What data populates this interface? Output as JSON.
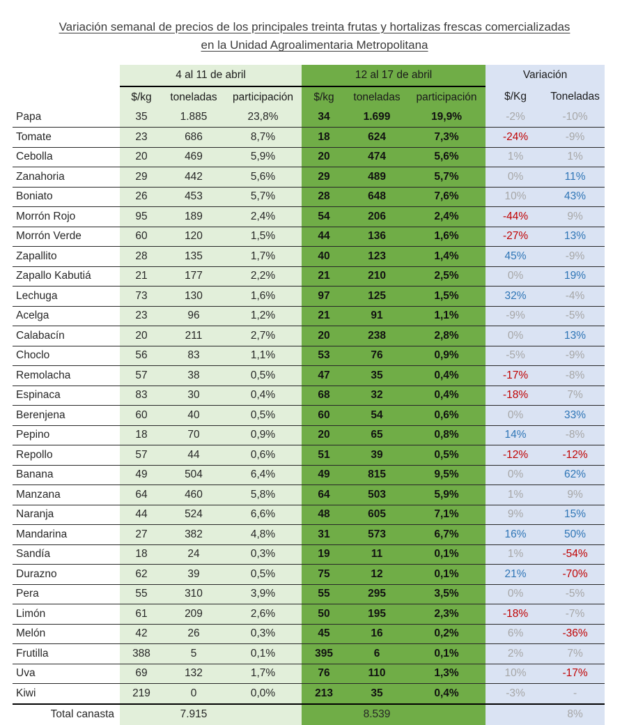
{
  "title": {
    "line1": "Variación semanal de precios de los principales treinta frutas y hortalizas frescas comercializadas",
    "line2": "en la Unidad Agroalimentaria Metropolitana"
  },
  "table": {
    "groups": {
      "week1": "4 al 11 de abril",
      "week2": "12 al 17 de abril",
      "variation": "Variación"
    },
    "subheaders": {
      "week1": [
        "$/kg",
        "toneladas",
        "participación"
      ],
      "week2": [
        "$/kg",
        "toneladas",
        "participación"
      ],
      "variation": [
        "$/Kg",
        "Toneladas"
      ]
    },
    "colors": {
      "week1_bg": "#e2efda",
      "week2_bg": "#70ad47",
      "variation_bg": "#dae3f3",
      "negative_text": "#c00000",
      "positive_text": "#2e75b6",
      "neutral_text": "#a6a6a6"
    },
    "rows": [
      {
        "name": "Papa",
        "w1": [
          "35",
          "1.885",
          "23,8%"
        ],
        "w2": [
          "34",
          "1.699",
          "19,9%"
        ],
        "var": [
          {
            "v": "-2%",
            "c": "gray"
          },
          {
            "v": "-10%",
            "c": "gray"
          }
        ]
      },
      {
        "name": "Tomate",
        "w1": [
          "23",
          "686",
          "8,7%"
        ],
        "w2": [
          "18",
          "624",
          "7,3%"
        ],
        "var": [
          {
            "v": "-24%",
            "c": "red"
          },
          {
            "v": "-9%",
            "c": "gray"
          }
        ]
      },
      {
        "name": "Cebolla",
        "w1": [
          "20",
          "469",
          "5,9%"
        ],
        "w2": [
          "20",
          "474",
          "5,6%"
        ],
        "var": [
          {
            "v": "1%",
            "c": "gray"
          },
          {
            "v": "1%",
            "c": "gray"
          }
        ]
      },
      {
        "name": "Zanahoria",
        "w1": [
          "29",
          "442",
          "5,6%"
        ],
        "w2": [
          "29",
          "489",
          "5,7%"
        ],
        "var": [
          {
            "v": "0%",
            "c": "gray"
          },
          {
            "v": "11%",
            "c": "blue"
          }
        ]
      },
      {
        "name": "Boniato",
        "w1": [
          "26",
          "453",
          "5,7%"
        ],
        "w2": [
          "28",
          "648",
          "7,6%"
        ],
        "var": [
          {
            "v": "10%",
            "c": "gray"
          },
          {
            "v": "43%",
            "c": "blue"
          }
        ]
      },
      {
        "name": "Morrón Rojo",
        "w1": [
          "95",
          "189",
          "2,4%"
        ],
        "w2": [
          "54",
          "206",
          "2,4%"
        ],
        "var": [
          {
            "v": "-44%",
            "c": "red"
          },
          {
            "v": "9%",
            "c": "gray"
          }
        ]
      },
      {
        "name": "Morrón Verde",
        "w1": [
          "60",
          "120",
          "1,5%"
        ],
        "w2": [
          "44",
          "136",
          "1,6%"
        ],
        "var": [
          {
            "v": "-27%",
            "c": "red"
          },
          {
            "v": "13%",
            "c": "blue"
          }
        ]
      },
      {
        "name": "Zapallito",
        "w1": [
          "28",
          "135",
          "1,7%"
        ],
        "w2": [
          "40",
          "123",
          "1,4%"
        ],
        "var": [
          {
            "v": "45%",
            "c": "blue"
          },
          {
            "v": "-9%",
            "c": "gray"
          }
        ]
      },
      {
        "name": "Zapallo Kabutiá",
        "w1": [
          "21",
          "177",
          "2,2%"
        ],
        "w2": [
          "21",
          "210",
          "2,5%"
        ],
        "var": [
          {
            "v": "0%",
            "c": "gray"
          },
          {
            "v": "19%",
            "c": "blue"
          }
        ]
      },
      {
        "name": "Lechuga",
        "w1": [
          "73",
          "130",
          "1,6%"
        ],
        "w2": [
          "97",
          "125",
          "1,5%"
        ],
        "var": [
          {
            "v": "32%",
            "c": "blue"
          },
          {
            "v": "-4%",
            "c": "gray"
          }
        ]
      },
      {
        "name": "Acelga",
        "w1": [
          "23",
          "96",
          "1,2%"
        ],
        "w2": [
          "21",
          "91",
          "1,1%"
        ],
        "var": [
          {
            "v": "-9%",
            "c": "gray"
          },
          {
            "v": "-5%",
            "c": "gray"
          }
        ]
      },
      {
        "name": "Calabacín",
        "w1": [
          "20",
          "211",
          "2,7%"
        ],
        "w2": [
          "20",
          "238",
          "2,8%"
        ],
        "var": [
          {
            "v": "0%",
            "c": "gray"
          },
          {
            "v": "13%",
            "c": "blue"
          }
        ]
      },
      {
        "name": "Choclo",
        "w1": [
          "56",
          "83",
          "1,1%"
        ],
        "w2": [
          "53",
          "76",
          "0,9%"
        ],
        "var": [
          {
            "v": "-5%",
            "c": "gray"
          },
          {
            "v": "-9%",
            "c": "gray"
          }
        ]
      },
      {
        "name": "Remolacha",
        "w1": [
          "57",
          "38",
          "0,5%"
        ],
        "w2": [
          "47",
          "35",
          "0,4%"
        ],
        "var": [
          {
            "v": "-17%",
            "c": "red"
          },
          {
            "v": "-8%",
            "c": "gray"
          }
        ]
      },
      {
        "name": "Espinaca",
        "w1": [
          "83",
          "30",
          "0,4%"
        ],
        "w2": [
          "68",
          "32",
          "0,4%"
        ],
        "var": [
          {
            "v": "-18%",
            "c": "red"
          },
          {
            "v": "7%",
            "c": "gray"
          }
        ]
      },
      {
        "name": "Berenjena",
        "w1": [
          "60",
          "40",
          "0,5%"
        ],
        "w2": [
          "60",
          "54",
          "0,6%"
        ],
        "var": [
          {
            "v": "0%",
            "c": "gray"
          },
          {
            "v": "33%",
            "c": "blue"
          }
        ]
      },
      {
        "name": "Pepino",
        "w1": [
          "18",
          "70",
          "0,9%"
        ],
        "w2": [
          "20",
          "65",
          "0,8%"
        ],
        "var": [
          {
            "v": "14%",
            "c": "blue"
          },
          {
            "v": "-8%",
            "c": "gray"
          }
        ]
      },
      {
        "name": "Repollo",
        "w1": [
          "57",
          "44",
          "0,6%"
        ],
        "w2": [
          "51",
          "39",
          "0,5%"
        ],
        "var": [
          {
            "v": "-12%",
            "c": "red"
          },
          {
            "v": "-12%",
            "c": "red"
          }
        ]
      },
      {
        "name": "Banana",
        "w1": [
          "49",
          "504",
          "6,4%"
        ],
        "w2": [
          "49",
          "815",
          "9,5%"
        ],
        "var": [
          {
            "v": "0%",
            "c": "gray"
          },
          {
            "v": "62%",
            "c": "blue"
          }
        ]
      },
      {
        "name": "Manzana",
        "w1": [
          "64",
          "460",
          "5,8%"
        ],
        "w2": [
          "64",
          "503",
          "5,9%"
        ],
        "var": [
          {
            "v": "1%",
            "c": "gray"
          },
          {
            "v": "9%",
            "c": "gray"
          }
        ]
      },
      {
        "name": "Naranja",
        "w1": [
          "44",
          "524",
          "6,6%"
        ],
        "w2": [
          "48",
          "605",
          "7,1%"
        ],
        "var": [
          {
            "v": "9%",
            "c": "gray"
          },
          {
            "v": "15%",
            "c": "blue"
          }
        ]
      },
      {
        "name": "Mandarina",
        "w1": [
          "27",
          "382",
          "4,8%"
        ],
        "w2": [
          "31",
          "573",
          "6,7%"
        ],
        "var": [
          {
            "v": "16%",
            "c": "blue"
          },
          {
            "v": "50%",
            "c": "blue"
          }
        ]
      },
      {
        "name": "Sandía",
        "w1": [
          "18",
          "24",
          "0,3%"
        ],
        "w2": [
          "19",
          "11",
          "0,1%"
        ],
        "var": [
          {
            "v": "1%",
            "c": "gray"
          },
          {
            "v": "-54%",
            "c": "red"
          }
        ]
      },
      {
        "name": "Durazno",
        "w1": [
          "62",
          "39",
          "0,5%"
        ],
        "w2": [
          "75",
          "12",
          "0,1%"
        ],
        "var": [
          {
            "v": "21%",
            "c": "blue"
          },
          {
            "v": "-70%",
            "c": "red"
          }
        ]
      },
      {
        "name": "Pera",
        "w1": [
          "55",
          "310",
          "3,9%"
        ],
        "w2": [
          "55",
          "295",
          "3,5%"
        ],
        "var": [
          {
            "v": "0%",
            "c": "gray"
          },
          {
            "v": "-5%",
            "c": "gray"
          }
        ]
      },
      {
        "name": "Limón",
        "w1": [
          "61",
          "209",
          "2,6%"
        ],
        "w2": [
          "50",
          "195",
          "2,3%"
        ],
        "var": [
          {
            "v": "-18%",
            "c": "red"
          },
          {
            "v": "-7%",
            "c": "gray"
          }
        ]
      },
      {
        "name": "Melón",
        "w1": [
          "42",
          "26",
          "0,3%"
        ],
        "w2": [
          "45",
          "16",
          "0,2%"
        ],
        "var": [
          {
            "v": "6%",
            "c": "gray"
          },
          {
            "v": "-36%",
            "c": "red"
          }
        ]
      },
      {
        "name": "Frutilla",
        "w1": [
          "388",
          "5",
          "0,1%"
        ],
        "w2": [
          "395",
          "6",
          "0,1%"
        ],
        "var": [
          {
            "v": "2%",
            "c": "gray"
          },
          {
            "v": "7%",
            "c": "gray"
          }
        ]
      },
      {
        "name": "Uva",
        "w1": [
          "69",
          "132",
          "1,7%"
        ],
        "w2": [
          "76",
          "110",
          "1,3%"
        ],
        "var": [
          {
            "v": "10%",
            "c": "gray"
          },
          {
            "v": "-17%",
            "c": "red"
          }
        ]
      },
      {
        "name": "Kiwi",
        "w1": [
          "219",
          "0",
          "0,0%"
        ],
        "w2": [
          "213",
          "35",
          "0,4%"
        ],
        "var": [
          {
            "v": "-3%",
            "c": "gray"
          },
          {
            "v": "-",
            "c": "gray"
          }
        ]
      }
    ],
    "total": {
      "label": "Total canasta",
      "week1_tons": "7.915",
      "week2_tons": "8.539",
      "variation_tons": {
        "v": "8%",
        "c": "gray"
      }
    }
  }
}
